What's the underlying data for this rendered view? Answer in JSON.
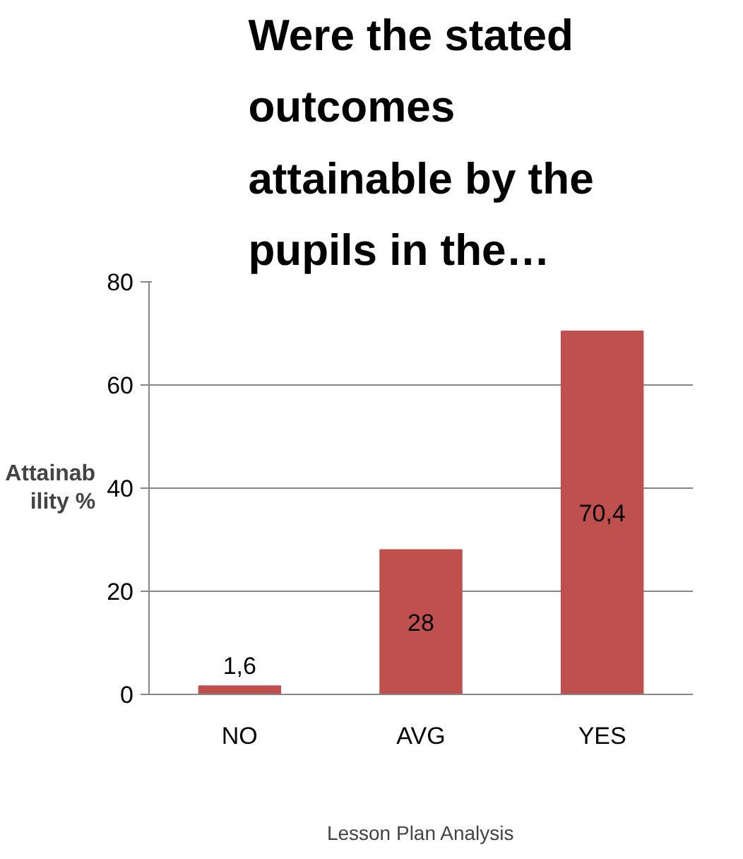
{
  "chart_data": {
    "type": "bar",
    "title": "Were the stated outcomes attainable by the pupils in the…",
    "xlabel": "Lesson Plan Analysis",
    "ylabel": "Attainability %",
    "categories": [
      "NO",
      "AVG",
      "YES"
    ],
    "values": [
      1.6,
      28,
      70.4
    ],
    "value_labels": [
      "1,6",
      "28",
      "70,4"
    ],
    "color": "#c0504d",
    "ylim": [
      0,
      80
    ],
    "yticks": [
      0,
      20,
      40,
      60,
      80
    ],
    "grid": "y"
  }
}
